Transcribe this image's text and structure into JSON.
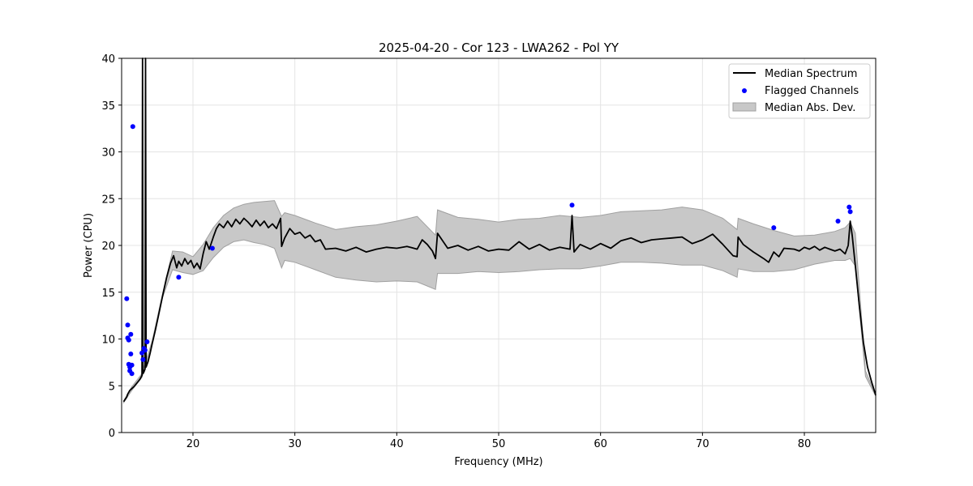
{
  "chart_data": {
    "type": "line",
    "title": "2025-04-20 - Cor 123 - LWA262 - Pol YY",
    "xlabel": "Frequency (MHz)",
    "ylabel": "Power (CPU)",
    "xlim": [
      13.0,
      87.0
    ],
    "ylim": [
      0,
      40
    ],
    "x_ticks": [
      "20",
      "30",
      "40",
      "50",
      "60",
      "70",
      "80"
    ],
    "y_ticks": [
      "0",
      "5",
      "10",
      "15",
      "20",
      "25",
      "30",
      "35",
      "40"
    ],
    "grid": true,
    "legend_position": "top-right",
    "legend": [
      "Median Spectrum",
      "Flagged Channels",
      "Median Abs. Dev."
    ],
    "colors": {
      "line": "#000000",
      "flagged": "#0000ff",
      "band_fill": "#c8c8c8",
      "band_edge": "#a0a0a0"
    },
    "series": [
      {
        "name": "Median Spectrum",
        "x": [
          13.2,
          13.5,
          13.6,
          13.7,
          13.8,
          13.9,
          14.0,
          14.2,
          14.5,
          14.8,
          15.0,
          15.05,
          15.1,
          15.2,
          15.3,
          15.35,
          15.4,
          15.6,
          15.8,
          16.0,
          16.3,
          16.6,
          17.0,
          17.4,
          17.8,
          18.1,
          18.4,
          18.6,
          18.9,
          19.2,
          19.5,
          19.8,
          20.1,
          20.4,
          20.7,
          21.0,
          21.3,
          21.6,
          22.0,
          22.3,
          22.6,
          23.0,
          23.4,
          23.8,
          24.2,
          24.6,
          25.0,
          25.4,
          25.8,
          26.2,
          26.6,
          27.0,
          27.4,
          27.8,
          28.2,
          28.6,
          28.7,
          29.0,
          29.5,
          30.0,
          30.5,
          31.0,
          31.5,
          32.0,
          32.5,
          33.0,
          34.0,
          35.0,
          36.0,
          37.0,
          38.0,
          39.0,
          40.0,
          41.0,
          42.0,
          42.5,
          43.0,
          43.5,
          43.8,
          44.0,
          45.0,
          46.0,
          47.0,
          48.0,
          49.0,
          50.0,
          51.0,
          52.0,
          53.0,
          54.0,
          55.0,
          56.0,
          57.0,
          57.2,
          57.4,
          58.0,
          59.0,
          60.0,
          61.0,
          62.0,
          63.0,
          64.0,
          65.0,
          66.0,
          67.0,
          68.0,
          69.0,
          70.0,
          71.0,
          72.0,
          73.0,
          73.4,
          73.5,
          74.0,
          75.0,
          76.0,
          76.5,
          77.0,
          77.5,
          78.0,
          79.0,
          79.5,
          80.0,
          80.5,
          81.0,
          81.5,
          82.0,
          82.5,
          83.0,
          83.5,
          84.0,
          84.3,
          84.5,
          84.7,
          85.0,
          85.4,
          85.8,
          86.2,
          86.6,
          87.0
        ],
        "values": [
          3.3,
          3.8,
          4.1,
          4.3,
          4.5,
          4.6,
          4.7,
          4.9,
          5.3,
          5.7,
          6.1,
          40.0,
          6.3,
          6.5,
          6.8,
          40.0,
          7.0,
          7.6,
          8.5,
          9.5,
          10.9,
          12.4,
          14.5,
          16.5,
          18.1,
          18.9,
          17.6,
          18.3,
          17.8,
          18.6,
          18.0,
          18.4,
          17.6,
          18.1,
          17.5,
          19.1,
          20.4,
          19.6,
          20.9,
          21.8,
          22.3,
          21.9,
          22.6,
          22.0,
          22.8,
          22.3,
          22.9,
          22.5,
          22.0,
          22.7,
          22.1,
          22.6,
          21.9,
          22.3,
          21.8,
          22.9,
          19.9,
          20.8,
          21.8,
          21.2,
          21.4,
          20.8,
          21.1,
          20.4,
          20.6,
          19.6,
          19.7,
          19.4,
          19.8,
          19.3,
          19.6,
          19.8,
          19.7,
          19.9,
          19.6,
          20.6,
          20.1,
          19.4,
          18.6,
          21.3,
          19.7,
          20.0,
          19.5,
          19.9,
          19.4,
          19.6,
          19.5,
          20.4,
          19.6,
          20.1,
          19.5,
          19.8,
          19.6,
          23.2,
          19.3,
          20.1,
          19.6,
          20.2,
          19.7,
          20.5,
          20.8,
          20.3,
          20.6,
          20.7,
          20.8,
          20.9,
          20.2,
          20.6,
          21.2,
          20.1,
          18.9,
          18.8,
          20.9,
          20.1,
          19.3,
          18.6,
          18.2,
          19.3,
          18.8,
          19.7,
          19.6,
          19.4,
          19.8,
          19.6,
          19.9,
          19.5,
          19.8,
          19.6,
          19.4,
          19.6,
          19.1,
          20.0,
          22.6,
          21.0,
          17.8,
          13.5,
          9.6,
          7.0,
          5.4,
          4.0
        ]
      },
      {
        "name": "Flagged Channels",
        "x": [
          13.5,
          13.6,
          13.6,
          13.7,
          13.7,
          13.8,
          13.8,
          13.9,
          13.9,
          14.0,
          14.0,
          14.1,
          15.0,
          15.1,
          15.2,
          15.3,
          15.5,
          18.6,
          21.9,
          57.2,
          77.0,
          83.3,
          84.4,
          84.5
        ],
        "values": [
          14.3,
          11.5,
          10.1,
          9.9,
          7.3,
          7.0,
          6.6,
          10.5,
          8.4,
          7.2,
          6.3,
          32.7,
          8.5,
          7.8,
          9.0,
          8.8,
          9.7,
          16.6,
          19.7,
          24.3,
          21.9,
          22.6,
          24.1,
          23.6
        ]
      },
      {
        "name": "Median Abs. Dev.",
        "x": [
          13.2,
          14.0,
          15.0,
          16.0,
          17.0,
          18.0,
          19.0,
          20.0,
          21.0,
          22.0,
          23.0,
          24.0,
          25.0,
          26.0,
          27.0,
          28.0,
          28.7,
          29.0,
          30.0,
          32.0,
          34.0,
          36.0,
          38.0,
          40.0,
          42.0,
          43.8,
          44.0,
          46.0,
          48.0,
          50.0,
          52.0,
          54.0,
          56.0,
          58.0,
          60.0,
          62.0,
          64.0,
          66.0,
          68.0,
          70.0,
          72.0,
          73.4,
          73.5,
          75.0,
          77.0,
          79.0,
          81.0,
          83.0,
          84.0,
          84.5,
          85.0,
          86.0,
          87.0
        ],
        "lower": [
          3.2,
          4.5,
          5.9,
          9.4,
          14.4,
          17.4,
          17.1,
          16.9,
          17.3,
          18.7,
          19.8,
          20.4,
          20.6,
          20.3,
          20.1,
          19.7,
          17.6,
          18.4,
          18.2,
          17.4,
          16.6,
          16.3,
          16.1,
          16.2,
          16.1,
          15.3,
          17.0,
          17.0,
          17.2,
          17.1,
          17.2,
          17.4,
          17.5,
          17.5,
          17.8,
          18.2,
          18.2,
          18.1,
          17.9,
          17.9,
          17.3,
          16.6,
          17.5,
          17.2,
          17.2,
          17.4,
          18.0,
          18.4,
          18.4,
          18.6,
          17.8,
          6.0,
          3.9
        ],
        "upper": [
          3.4,
          4.9,
          6.3,
          9.8,
          14.8,
          19.4,
          19.3,
          18.8,
          20.1,
          21.9,
          23.2,
          24.0,
          24.4,
          24.6,
          24.7,
          24.8,
          23.1,
          23.5,
          23.2,
          22.4,
          21.7,
          22.0,
          22.2,
          22.6,
          23.1,
          21.1,
          23.8,
          23.0,
          22.8,
          22.5,
          22.8,
          22.9,
          23.2,
          23.0,
          23.2,
          23.6,
          23.7,
          23.8,
          24.1,
          23.8,
          22.9,
          21.7,
          22.9,
          22.3,
          21.6,
          21.0,
          21.1,
          21.5,
          21.9,
          22.5,
          21.3,
          6.6,
          4.0
        ]
      }
    ]
  }
}
